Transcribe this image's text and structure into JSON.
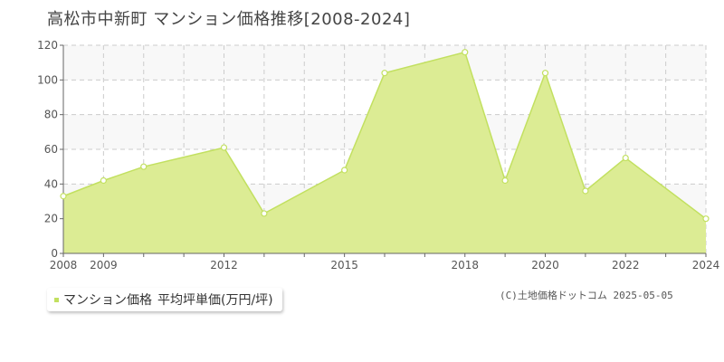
{
  "title": "高松市中新町 マンション価格推移[2008-2024]",
  "colors": {
    "fill": "#dcec94",
    "line": "#c2e060",
    "band": "#f8f8f8",
    "grid": "#cccccc",
    "marker": "#c2e060"
  },
  "chart_data": {
    "type": "area",
    "title": "高松市中新町 マンション価格推移[2008-2024]",
    "xlabel": "",
    "ylabel": "",
    "xlim": [
      2008,
      2024
    ],
    "ylim": [
      0,
      120
    ],
    "grid": true,
    "x_ticks": [
      2008,
      2009,
      2012,
      2015,
      2018,
      2020,
      2022,
      2024
    ],
    "x_gridlines": [
      2008,
      2009,
      2010,
      2011,
      2012,
      2013,
      2014,
      2015,
      2016,
      2017,
      2018,
      2019,
      2020,
      2021,
      2022,
      2023,
      2024
    ],
    "y_ticks": [
      0,
      20,
      40,
      60,
      80,
      100,
      120
    ],
    "x": [
      2008,
      2009,
      2010,
      2012,
      2013,
      2015,
      2016,
      2018,
      2019,
      2020,
      2021,
      2022,
      2024
    ],
    "series": [
      {
        "name": "マンション価格 平均坪単価(万円/坪)",
        "values": [
          33,
          42,
          50,
          61,
          23,
          48,
          104,
          116,
          42,
          104,
          36,
          55,
          20
        ]
      }
    ],
    "legend": "bottom-left"
  },
  "legend": {
    "label": "マンション価格",
    "unit_label": "平均坪単価(万円/坪)"
  },
  "copyright": "(C)土地価格ドットコム 2025-05-05"
}
